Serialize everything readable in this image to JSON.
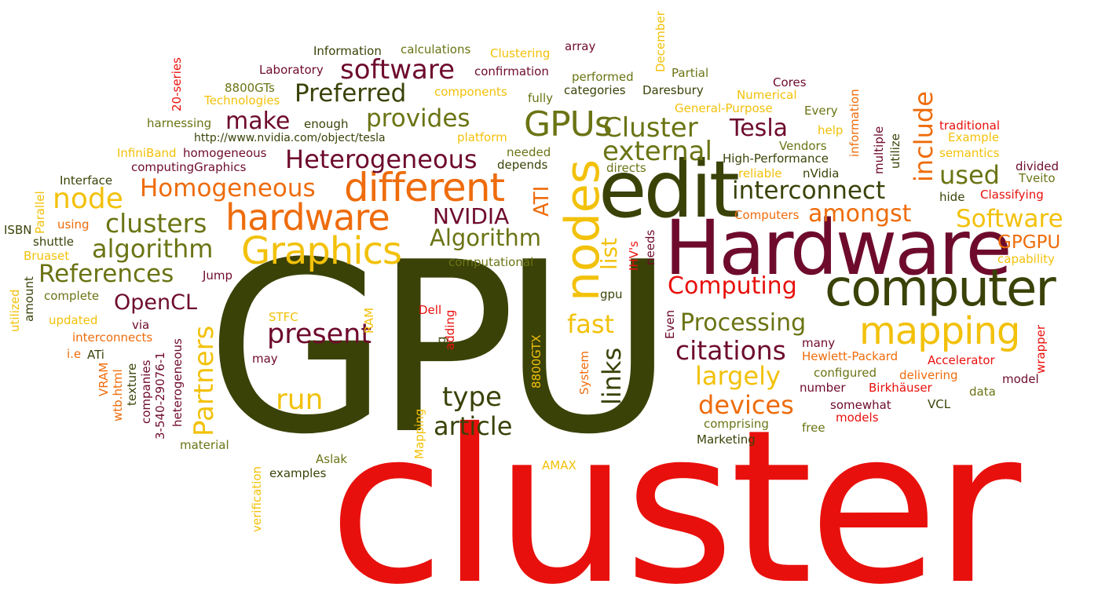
{
  "palette": {
    "red": "#e8100c",
    "maroon": "#6e0b2c",
    "dark_olive": "#3b4208",
    "olive": "#6b7414",
    "orange": "#ee6c0c",
    "yellow": "#f2c10a"
  },
  "words": [
    {
      "text": "cluster",
      "color": "red"
    },
    {
      "text": "GPU",
      "color": "dark_olive"
    },
    {
      "text": "Hardware",
      "color": "maroon"
    },
    {
      "text": "edit",
      "color": "dark_olive"
    },
    {
      "text": "computer",
      "color": "dark_olive"
    },
    {
      "text": "nodes",
      "color": "yellow"
    },
    {
      "text": "different",
      "color": "orange"
    },
    {
      "text": "hardware",
      "color": "orange"
    },
    {
      "text": "mapping",
      "color": "yellow"
    },
    {
      "text": "Graphics",
      "color": "yellow"
    },
    {
      "text": "GPUs",
      "color": "olive"
    },
    {
      "text": "software",
      "color": "maroon"
    },
    {
      "text": "Preferred",
      "color": "dark_olive"
    },
    {
      "text": "provides",
      "color": "olive"
    },
    {
      "text": "make",
      "color": "maroon"
    },
    {
      "text": "Heterogeneous",
      "color": "maroon"
    },
    {
      "text": "Homogeneous",
      "color": "orange"
    },
    {
      "text": "node",
      "color": "yellow"
    },
    {
      "text": "clusters",
      "color": "olive"
    },
    {
      "text": "algorithm",
      "color": "olive"
    },
    {
      "text": "References",
      "color": "olive"
    },
    {
      "text": "OpenCL",
      "color": "maroon"
    },
    {
      "text": "NVIDIA",
      "color": "maroon"
    },
    {
      "text": "Algorithm",
      "color": "olive"
    },
    {
      "text": "Cluster",
      "color": "olive"
    },
    {
      "text": "Tesla",
      "color": "maroon"
    },
    {
      "text": "external",
      "color": "olive"
    },
    {
      "text": "interconnect",
      "color": "dark_olive"
    },
    {
      "text": "amongst",
      "color": "orange"
    },
    {
      "text": "include",
      "color": "orange"
    },
    {
      "text": "used",
      "color": "olive"
    },
    {
      "text": "Software",
      "color": "yellow"
    },
    {
      "text": "GPGPU",
      "color": "orange"
    },
    {
      "text": "Computing",
      "color": "red"
    },
    {
      "text": "Processing",
      "color": "olive"
    },
    {
      "text": "citations",
      "color": "maroon"
    },
    {
      "text": "largely",
      "color": "yellow"
    },
    {
      "text": "devices",
      "color": "orange"
    },
    {
      "text": "present",
      "color": "maroon"
    },
    {
      "text": "Partners",
      "color": "yellow"
    },
    {
      "text": "run",
      "color": "yellow"
    },
    {
      "text": "fast",
      "color": "yellow"
    },
    {
      "text": "links",
      "color": "dark_olive"
    },
    {
      "text": "type",
      "color": "dark_olive"
    },
    {
      "text": "article",
      "color": "dark_olive"
    },
    {
      "text": "list",
      "color": "yellow"
    },
    {
      "text": "ATI",
      "color": "orange"
    },
    {
      "text": "Information",
      "color": "dark_olive"
    },
    {
      "text": "calculations",
      "color": "olive"
    },
    {
      "text": "Clustering",
      "color": "yellow"
    },
    {
      "text": "array",
      "color": "maroon"
    },
    {
      "text": "Laboratory",
      "color": "maroon"
    },
    {
      "text": "confirmation",
      "color": "maroon"
    },
    {
      "text": "8800GTs",
      "color": "olive"
    },
    {
      "text": "Technologies",
      "color": "yellow"
    },
    {
      "text": "components",
      "color": "yellow"
    },
    {
      "text": "performed",
      "color": "olive"
    },
    {
      "text": "categories",
      "color": "dark_olive"
    },
    {
      "text": "Daresbury",
      "color": "dark_olive"
    },
    {
      "text": "fully",
      "color": "olive"
    },
    {
      "text": "Partial",
      "color": "olive"
    },
    {
      "text": "Cores",
      "color": "maroon"
    },
    {
      "text": "Numerical",
      "color": "yellow"
    },
    {
      "text": "General-Purpose",
      "color": "yellow"
    },
    {
      "text": "Every",
      "color": "olive"
    },
    {
      "text": "harnessing",
      "color": "olive"
    },
    {
      "text": "enough",
      "color": "dark_olive"
    },
    {
      "text": "http://www.nvidia.com/object/tesla",
      "color": "dark_olive"
    },
    {
      "text": "platform",
      "color": "yellow"
    },
    {
      "text": "InfiniBand",
      "color": "yellow"
    },
    {
      "text": "homogeneous",
      "color": "maroon"
    },
    {
      "text": "computingGraphics",
      "color": "maroon"
    },
    {
      "text": "needed",
      "color": "olive"
    },
    {
      "text": "depends",
      "color": "dark_olive"
    },
    {
      "text": "directs",
      "color": "olive"
    },
    {
      "text": "High-Performance",
      "color": "dark_olive"
    },
    {
      "text": "Vendors",
      "color": "olive"
    },
    {
      "text": "reliable",
      "color": "yellow"
    },
    {
      "text": "nVidia",
      "color": "dark_olive"
    },
    {
      "text": "help",
      "color": "yellow"
    },
    {
      "text": "traditional",
      "color": "red"
    },
    {
      "text": "Example",
      "color": "yellow"
    },
    {
      "text": "semantics",
      "color": "yellow"
    },
    {
      "text": "divided",
      "color": "maroon"
    },
    {
      "text": "Tveito",
      "color": "olive"
    },
    {
      "text": "hide",
      "color": "dark_olive"
    },
    {
      "text": "Classifying",
      "color": "red"
    },
    {
      "text": "Computers",
      "color": "orange"
    },
    {
      "text": "capability",
      "color": "yellow"
    },
    {
      "text": "Interface",
      "color": "dark_olive"
    },
    {
      "text": "ISBN",
      "color": "dark_olive"
    },
    {
      "text": "using",
      "color": "orange"
    },
    {
      "text": "shuttle",
      "color": "dark_olive"
    },
    {
      "text": "Bruaset",
      "color": "yellow"
    },
    {
      "text": "Jump",
      "color": "maroon"
    },
    {
      "text": "complete",
      "color": "olive"
    },
    {
      "text": "updated",
      "color": "yellow"
    },
    {
      "text": "via",
      "color": "maroon"
    },
    {
      "text": "interconnects",
      "color": "orange"
    },
    {
      "text": "i.e",
      "color": "orange"
    },
    {
      "text": "ATi",
      "color": "dark_olive"
    },
    {
      "text": "computational",
      "color": "olive"
    },
    {
      "text": "gpu",
      "color": "dark_olive"
    },
    {
      "text": "STFC",
      "color": "yellow"
    },
    {
      "text": "Dell",
      "color": "red"
    },
    {
      "text": "may",
      "color": "maroon"
    },
    {
      "text": "many",
      "color": "maroon"
    },
    {
      "text": "Hewlett-Packard",
      "color": "orange"
    },
    {
      "text": "Accelerator",
      "color": "red"
    },
    {
      "text": "configured",
      "color": "olive"
    },
    {
      "text": "delivering",
      "color": "orange"
    },
    {
      "text": "model",
      "color": "maroon"
    },
    {
      "text": "number",
      "color": "maroon"
    },
    {
      "text": "Birkhäuser",
      "color": "red"
    },
    {
      "text": "data",
      "color": "olive"
    },
    {
      "text": "somewhat",
      "color": "maroon"
    },
    {
      "text": "VCL",
      "color": "dark_olive"
    },
    {
      "text": "comprising",
      "color": "olive"
    },
    {
      "text": "models",
      "color": "red"
    },
    {
      "text": "free",
      "color": "olive"
    },
    {
      "text": "Marketing",
      "color": "dark_olive"
    },
    {
      "text": "material",
      "color": "olive"
    },
    {
      "text": "Aslak",
      "color": "olive"
    },
    {
      "text": "examples",
      "color": "dark_olive"
    },
    {
      "text": "AMAX",
      "color": "yellow"
    },
    {
      "text": "December",
      "color": "yellow"
    },
    {
      "text": "20-series",
      "color": "red"
    },
    {
      "text": "information",
      "color": "orange"
    },
    {
      "text": "multiple",
      "color": "maroon"
    },
    {
      "text": "utilize",
      "color": "dark_olive"
    },
    {
      "text": "IHV's",
      "color": "red"
    },
    {
      "text": "needs",
      "color": "maroon"
    },
    {
      "text": "Even",
      "color": "maroon"
    },
    {
      "text": "wrapper",
      "color": "red"
    },
    {
      "text": "Parallel",
      "color": "yellow"
    },
    {
      "text": "amount",
      "color": "dark_olive"
    },
    {
      "text": "utilized",
      "color": "yellow"
    },
    {
      "text": "RAM",
      "color": "yellow"
    },
    {
      "text": "e.g",
      "color": "dark_olive"
    },
    {
      "text": "adding",
      "color": "red"
    },
    {
      "text": "8800GTX",
      "color": "yellow"
    },
    {
      "text": "System",
      "color": "orange"
    },
    {
      "text": "Mapping",
      "color": "yellow"
    },
    {
      "text": "verification",
      "color": "yellow"
    },
    {
      "text": "VRAM",
      "color": "orange"
    },
    {
      "text": "wtb.html",
      "color": "orange"
    },
    {
      "text": "texture",
      "color": "dark_olive"
    },
    {
      "text": "companies",
      "color": "maroon"
    },
    {
      "text": "3-540-29076-1",
      "color": "maroon"
    },
    {
      "text": "heterogeneous",
      "color": "maroon"
    }
  ]
}
